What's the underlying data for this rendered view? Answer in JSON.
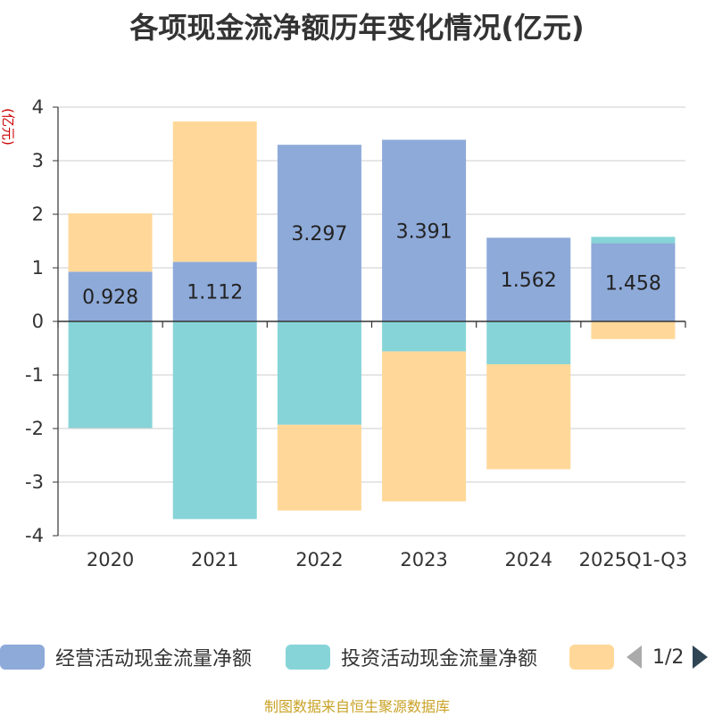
{
  "chart_data": {
    "type": "bar",
    "stacked": true,
    "title": "各项现金流净额历年变化情况(亿元)",
    "ylabel": "(亿元)",
    "categories": [
      "2020",
      "2021",
      "2022",
      "2023",
      "2024",
      "2025Q1-Q3"
    ],
    "ylim": [
      -4,
      4
    ],
    "yticks": [
      4,
      3,
      2,
      1,
      0,
      -1,
      -2,
      -3,
      -4
    ],
    "grid": true,
    "series": [
      {
        "name": "经营活动现金流量净额",
        "color": "#8eaad9",
        "values": [
          0.928,
          1.112,
          3.297,
          3.391,
          1.562,
          1.458
        ],
        "show_labels": true
      },
      {
        "name": "投资活动现金流量净额",
        "color": "#86d4d7",
        "values": [
          -1.99,
          -3.69,
          -1.93,
          -0.56,
          -0.8,
          0.12
        ],
        "show_labels": false
      },
      {
        "name": "",
        "color": "#ffd899",
        "values": [
          1.09,
          2.62,
          -1.6,
          -2.8,
          -1.96,
          -0.33
        ],
        "show_labels": false
      }
    ],
    "legend": {
      "position": "bottom",
      "page": "1/2"
    }
  },
  "source": "制图数据来自恒生聚源数据库"
}
